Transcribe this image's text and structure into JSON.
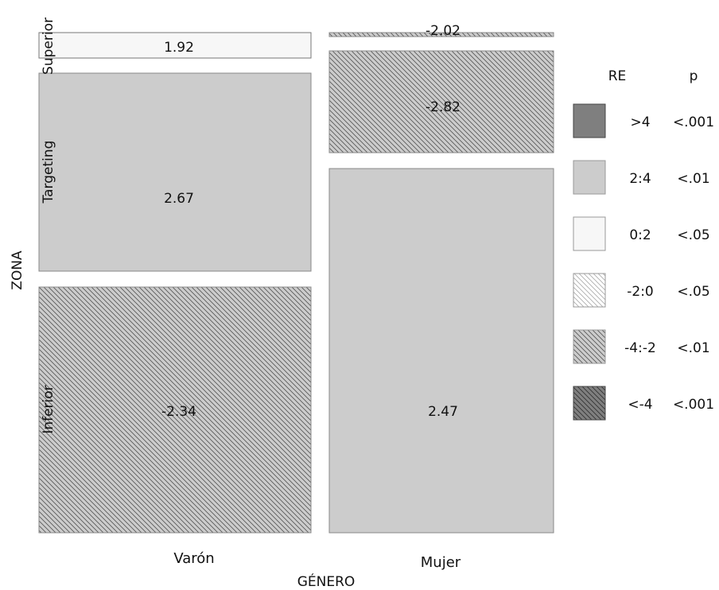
{
  "chart_data": {
    "type": "mosaic",
    "xlabel": "GÉNERO",
    "ylabel": "ZONA",
    "columns": [
      "Varón",
      "Mujer"
    ],
    "rows": [
      "Superior",
      "Targeting",
      "Inferior"
    ],
    "cells": [
      {
        "column": "Varón",
        "row": "Superior",
        "residual": 1.92,
        "label": "1.92"
      },
      {
        "column": "Varón",
        "row": "Targeting",
        "residual": 2.67,
        "label": "2.67"
      },
      {
        "column": "Varón",
        "row": "Inferior",
        "residual": -2.34,
        "label": "-2.34"
      },
      {
        "column": "Mujer",
        "row": "Superior",
        "residual": -2.02,
        "label": "-2.02"
      },
      {
        "column": "Mujer",
        "row": "Targeting",
        "residual": -2.82,
        "label": "-2.82"
      },
      {
        "column": "Mujer",
        "row": "Inferior",
        "residual": 2.47,
        "label": "2.47"
      }
    ],
    "legend": {
      "header_re": "RE",
      "header_p": "p",
      "placement": "right",
      "entries": [
        {
          "re": ">4",
          "p": "<.001",
          "fill": "#7f7f7f",
          "pattern": "none"
        },
        {
          "re": "2:4",
          "p": "<.01",
          "fill": "#cccccc",
          "pattern": "none"
        },
        {
          "re": "0:2",
          "p": "<.05",
          "fill": "#f7f7f7",
          "pattern": "none"
        },
        {
          "re": "-2:0",
          "p": "<.05",
          "fill": "#ffffff",
          "pattern": "light-hatch"
        },
        {
          "re": "-4:-2",
          "p": "<.01",
          "fill": "#cccccc",
          "pattern": "hatch"
        },
        {
          "re": "<-4",
          "p": "<.001",
          "fill": "#7f7f7f",
          "pattern": "hatch"
        }
      ]
    }
  }
}
